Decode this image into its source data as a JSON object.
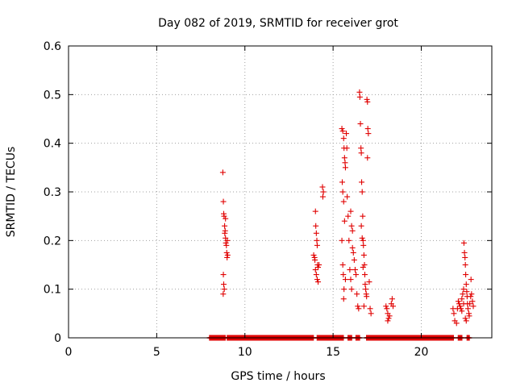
{
  "chart_data": {
    "type": "scatter",
    "title": "Day 082 of 2019, SRMTID for receiver grot",
    "xlabel": "GPS time / hours",
    "ylabel": "SRMTID / TECUs",
    "xlim": [
      0,
      24
    ],
    "ylim": [
      0,
      0.6
    ],
    "xticks": [
      "0",
      "5",
      "10",
      "15",
      "20"
    ],
    "xtick_values": [
      0,
      5,
      10,
      15,
      20
    ],
    "yticks": [
      "0",
      "0.1",
      "0.2",
      "0.3",
      "0.4",
      "0.5",
      "0.6"
    ],
    "ytick_values": [
      0,
      0.1,
      0.2,
      0.3,
      0.4,
      0.5,
      0.6
    ],
    "grid": true,
    "marker": "plus",
    "color": "#e00000",
    "series": [
      {
        "points": [
          [
            8.75,
            0.34
          ],
          [
            8.78,
            0.28
          ],
          [
            8.8,
            0.255
          ],
          [
            8.82,
            0.25
          ],
          [
            8.85,
            0.23
          ],
          [
            8.88,
            0.22
          ],
          [
            8.9,
            0.205
          ],
          [
            8.92,
            0.195
          ],
          [
            8.95,
            0.19
          ],
          [
            8.97,
            0.175
          ],
          [
            8.99,
            0.165
          ],
          [
            9.0,
            0.2
          ],
          [
            9.02,
            0.17
          ],
          [
            8.78,
            0.13
          ],
          [
            8.8,
            0.11
          ],
          [
            8.77,
            0.09
          ],
          [
            8.83,
            0.1
          ],
          [
            8.9,
            0.245
          ],
          [
            8.86,
            0.215
          ],
          [
            13.9,
            0.17
          ],
          [
            13.95,
            0.165
          ],
          [
            14.0,
            0.26
          ],
          [
            14.02,
            0.23
          ],
          [
            14.05,
            0.215
          ],
          [
            14.08,
            0.2
          ],
          [
            14.1,
            0.19
          ],
          [
            14.12,
            0.15
          ],
          [
            14.15,
            0.145
          ],
          [
            14.0,
            0.14
          ],
          [
            14.05,
            0.13
          ],
          [
            14.1,
            0.12
          ],
          [
            14.15,
            0.115
          ],
          [
            14.2,
            0.15
          ],
          [
            13.97,
            0.16
          ],
          [
            14.4,
            0.31
          ],
          [
            14.42,
            0.29
          ],
          [
            14.45,
            0.3
          ],
          [
            15.5,
            0.43
          ],
          [
            15.55,
            0.425
          ],
          [
            15.6,
            0.41
          ],
          [
            15.62,
            0.39
          ],
          [
            15.65,
            0.37
          ],
          [
            15.68,
            0.36
          ],
          [
            15.7,
            0.35
          ],
          [
            15.52,
            0.32
          ],
          [
            15.55,
            0.3
          ],
          [
            15.6,
            0.28
          ],
          [
            15.65,
            0.24
          ],
          [
            15.5,
            0.2
          ],
          [
            15.55,
            0.15
          ],
          [
            15.58,
            0.13
          ],
          [
            15.6,
            0.08
          ],
          [
            15.62,
            0.1
          ],
          [
            15.7,
            0.12
          ],
          [
            15.75,
            0.42
          ],
          [
            15.78,
            0.39
          ],
          [
            15.8,
            0.29
          ],
          [
            15.85,
            0.25
          ],
          [
            15.9,
            0.2
          ],
          [
            15.95,
            0.14
          ],
          [
            16.0,
            0.12
          ],
          [
            16.05,
            0.1
          ],
          [
            16.1,
            0.185
          ],
          [
            16.15,
            0.175
          ],
          [
            16.2,
            0.16
          ],
          [
            16.25,
            0.14
          ],
          [
            16.3,
            0.13
          ],
          [
            16.35,
            0.09
          ],
          [
            16.4,
            0.065
          ],
          [
            16.45,
            0.06
          ],
          [
            16.0,
            0.26
          ],
          [
            16.05,
            0.23
          ],
          [
            16.1,
            0.22
          ],
          [
            16.5,
            0.505
          ],
          [
            16.52,
            0.495
          ],
          [
            16.55,
            0.44
          ],
          [
            16.58,
            0.39
          ],
          [
            16.6,
            0.38
          ],
          [
            16.62,
            0.32
          ],
          [
            16.65,
            0.3
          ],
          [
            16.68,
            0.25
          ],
          [
            16.7,
            0.2
          ],
          [
            16.72,
            0.19
          ],
          [
            16.75,
            0.17
          ],
          [
            16.78,
            0.15
          ],
          [
            16.8,
            0.13
          ],
          [
            16.82,
            0.11
          ],
          [
            16.85,
            0.1
          ],
          [
            16.88,
            0.09
          ],
          [
            16.9,
            0.085
          ],
          [
            16.92,
            0.49
          ],
          [
            16.95,
            0.485
          ],
          [
            16.97,
            0.43
          ],
          [
            17.0,
            0.42
          ],
          [
            16.95,
            0.37
          ],
          [
            17.05,
            0.115
          ],
          [
            17.1,
            0.06
          ],
          [
            17.15,
            0.05
          ],
          [
            16.6,
            0.23
          ],
          [
            16.65,
            0.205
          ],
          [
            16.7,
            0.145
          ],
          [
            16.75,
            0.065
          ],
          [
            18.0,
            0.065
          ],
          [
            18.05,
            0.06
          ],
          [
            18.1,
            0.05
          ],
          [
            18.15,
            0.04
          ],
          [
            18.2,
            0.045
          ],
          [
            18.3,
            0.07
          ],
          [
            18.35,
            0.08
          ],
          [
            18.4,
            0.065
          ],
          [
            18.1,
            0.035
          ],
          [
            21.8,
            0.06
          ],
          [
            21.85,
            0.05
          ],
          [
            21.9,
            0.035
          ],
          [
            22.0,
            0.03
          ],
          [
            22.05,
            0.06
          ],
          [
            22.1,
            0.075
          ],
          [
            22.15,
            0.07
          ],
          [
            22.2,
            0.065
          ],
          [
            22.25,
            0.06
          ],
          [
            22.3,
            0.08
          ],
          [
            22.35,
            0.09
          ],
          [
            22.4,
            0.1
          ],
          [
            22.42,
            0.195
          ],
          [
            22.45,
            0.175
          ],
          [
            22.48,
            0.165
          ],
          [
            22.5,
            0.15
          ],
          [
            22.52,
            0.13
          ],
          [
            22.55,
            0.11
          ],
          [
            22.58,
            0.095
          ],
          [
            22.6,
            0.085
          ],
          [
            22.62,
            0.07
          ],
          [
            22.65,
            0.06
          ],
          [
            22.7,
            0.05
          ],
          [
            22.72,
            0.045
          ],
          [
            22.75,
            0.07
          ],
          [
            22.8,
            0.085
          ],
          [
            22.82,
            0.12
          ],
          [
            22.85,
            0.09
          ],
          [
            22.9,
            0.075
          ],
          [
            22.95,
            0.065
          ],
          [
            22.5,
            0.04
          ],
          [
            22.55,
            0.035
          ],
          [
            22.4,
            0.07
          ],
          [
            22.3,
            0.055
          ]
        ]
      }
    ],
    "rug_y": 0,
    "rug_ranges": [
      [
        8.0,
        8.9
      ],
      [
        9.0,
        13.9
      ],
      [
        14.1,
        15.6
      ],
      [
        15.85,
        16.05
      ],
      [
        16.3,
        16.5
      ],
      [
        16.9,
        21.85
      ],
      [
        22.1,
        22.3
      ],
      [
        22.6,
        22.75
      ]
    ]
  }
}
